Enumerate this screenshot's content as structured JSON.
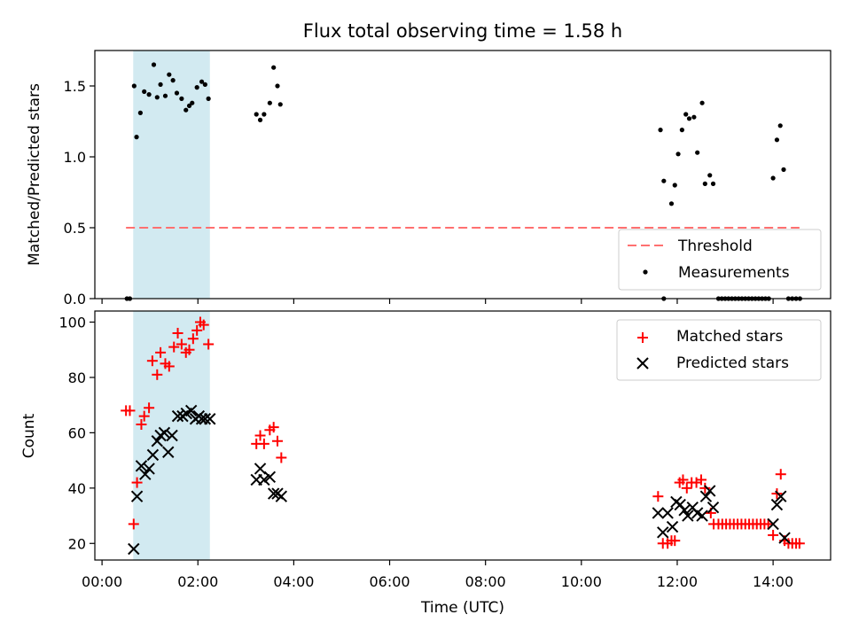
{
  "figure": {
    "title": "Flux total observing time = 1.58 h",
    "xlabel": "Time (UTC)"
  },
  "chart_data": [
    {
      "type": "scatter",
      "panel": "top",
      "ylabel": "Matched/Predicted stars",
      "xlim": [
        -0.15,
        15.2
      ],
      "ylim": [
        0,
        1.75
      ],
      "yticks": [
        0,
        0.5,
        1.0,
        1.5
      ],
      "ytick_labels": [
        "0.0",
        "0.5",
        "1.0",
        "1.5"
      ],
      "x_units": "hours UTC",
      "shaded_span": {
        "x": [
          0.65,
          2.25
        ],
        "color": "#add8e6"
      },
      "legend": {
        "position": "lower-right",
        "entries": [
          "Threshold",
          "Measurements"
        ]
      },
      "series": [
        {
          "name": "Threshold",
          "kind": "dashed-line",
          "color": "#ff7070",
          "x": [
            0.5,
            14.55
          ],
          "y": [
            0.5,
            0.5
          ]
        },
        {
          "name": "Measurements",
          "kind": "points",
          "color": "#000000",
          "points": [
            [
              0.52,
              0.0
            ],
            [
              0.58,
              0.0
            ],
            [
              0.67,
              1.5
            ],
            [
              0.72,
              1.14
            ],
            [
              0.8,
              1.31
            ],
            [
              0.88,
              1.46
            ],
            [
              0.98,
              1.44
            ],
            [
              1.08,
              1.65
            ],
            [
              1.15,
              1.42
            ],
            [
              1.22,
              1.51
            ],
            [
              1.32,
              1.43
            ],
            [
              1.4,
              1.58
            ],
            [
              1.48,
              1.54
            ],
            [
              1.56,
              1.45
            ],
            [
              1.66,
              1.41
            ],
            [
              1.75,
              1.33
            ],
            [
              1.82,
              1.36
            ],
            [
              1.88,
              1.38
            ],
            [
              1.98,
              1.49
            ],
            [
              2.08,
              1.53
            ],
            [
              2.15,
              1.51
            ],
            [
              2.22,
              1.41
            ],
            [
              3.22,
              1.3
            ],
            [
              3.3,
              1.26
            ],
            [
              3.38,
              1.3
            ],
            [
              3.5,
              1.38
            ],
            [
              3.58,
              1.63
            ],
            [
              3.66,
              1.5
            ],
            [
              3.72,
              1.37
            ],
            [
              11.65,
              1.19
            ],
            [
              11.72,
              0.83
            ],
            [
              11.88,
              0.67
            ],
            [
              11.95,
              0.8
            ],
            [
              12.02,
              1.02
            ],
            [
              12.1,
              1.19
            ],
            [
              12.18,
              1.3
            ],
            [
              12.25,
              1.27
            ],
            [
              12.35,
              1.28
            ],
            [
              12.42,
              1.03
            ],
            [
              12.52,
              1.38
            ],
            [
              12.58,
              0.81
            ],
            [
              12.68,
              0.87
            ],
            [
              12.75,
              0.81
            ],
            [
              14.0,
              0.85
            ],
            [
              14.08,
              1.12
            ],
            [
              14.15,
              1.22
            ],
            [
              14.22,
              0.91
            ],
            [
              11.72,
              0.0
            ],
            [
              12.86,
              0.0
            ],
            [
              12.93,
              0.0
            ],
            [
              13.0,
              0.0
            ],
            [
              13.07,
              0.0
            ],
            [
              13.14,
              0.0
            ],
            [
              13.21,
              0.0
            ],
            [
              13.28,
              0.0
            ],
            [
              13.35,
              0.0
            ],
            [
              13.42,
              0.0
            ],
            [
              13.49,
              0.0
            ],
            [
              13.56,
              0.0
            ],
            [
              13.63,
              0.0
            ],
            [
              13.7,
              0.0
            ],
            [
              13.77,
              0.0
            ],
            [
              13.84,
              0.0
            ],
            [
              13.91,
              0.0
            ],
            [
              14.32,
              0.0
            ],
            [
              14.4,
              0.0
            ],
            [
              14.48,
              0.0
            ],
            [
              14.56,
              0.0
            ]
          ]
        }
      ]
    },
    {
      "type": "scatter",
      "panel": "bottom",
      "ylabel": "Count",
      "xlim": [
        -0.15,
        15.2
      ],
      "ylim": [
        14,
        104
      ],
      "yticks": [
        20,
        40,
        60,
        80,
        100
      ],
      "ytick_labels": [
        "20",
        "40",
        "60",
        "80",
        "100"
      ],
      "xticks": [
        0,
        2,
        4,
        6,
        8,
        10,
        12,
        14
      ],
      "xtick_labels": [
        "00:00",
        "02:00",
        "04:00",
        "06:00",
        "08:00",
        "10:00",
        "12:00",
        "14:00"
      ],
      "shaded_span": {
        "x": [
          0.65,
          2.25
        ],
        "color": "#add8e6"
      },
      "legend": {
        "position": "top-right",
        "entries": [
          "Matched stars",
          "Predicted stars"
        ]
      },
      "series": [
        {
          "name": "Matched stars",
          "marker": "+",
          "color": "#ff0000",
          "points": [
            [
              0.5,
              68
            ],
            [
              0.58,
              68
            ],
            [
              0.66,
              27
            ],
            [
              0.73,
              42
            ],
            [
              0.82,
              63
            ],
            [
              0.88,
              66
            ],
            [
              0.98,
              69
            ],
            [
              1.05,
              86
            ],
            [
              1.15,
              81
            ],
            [
              1.22,
              89
            ],
            [
              1.32,
              85
            ],
            [
              1.4,
              84
            ],
            [
              1.5,
              91
            ],
            [
              1.58,
              96
            ],
            [
              1.66,
              92
            ],
            [
              1.75,
              89
            ],
            [
              1.82,
              90
            ],
            [
              1.9,
              94
            ],
            [
              1.98,
              97
            ],
            [
              2.05,
              100
            ],
            [
              2.12,
              99
            ],
            [
              2.22,
              92
            ],
            [
              3.22,
              56
            ],
            [
              3.3,
              59
            ],
            [
              3.38,
              56
            ],
            [
              3.5,
              61
            ],
            [
              3.58,
              62
            ],
            [
              3.66,
              57
            ],
            [
              3.74,
              51
            ],
            [
              11.6,
              37
            ],
            [
              11.7,
              20
            ],
            [
              11.8,
              20
            ],
            [
              11.88,
              21
            ],
            [
              11.95,
              21
            ],
            [
              12.05,
              42
            ],
            [
              12.12,
              43
            ],
            [
              12.2,
              40
            ],
            [
              12.3,
              42
            ],
            [
              12.4,
              42
            ],
            [
              12.5,
              43
            ],
            [
              12.58,
              40
            ],
            [
              12.7,
              31
            ],
            [
              12.76,
              27
            ],
            [
              12.86,
              27
            ],
            [
              12.94,
              27
            ],
            [
              13.02,
              27
            ],
            [
              13.1,
              27
            ],
            [
              13.18,
              27
            ],
            [
              13.26,
              27
            ],
            [
              13.34,
              27
            ],
            [
              13.42,
              27
            ],
            [
              13.5,
              27
            ],
            [
              13.58,
              27
            ],
            [
              13.66,
              27
            ],
            [
              13.74,
              27
            ],
            [
              13.82,
              27
            ],
            [
              13.9,
              27
            ],
            [
              14.0,
              23
            ],
            [
              14.08,
              38
            ],
            [
              14.16,
              45
            ],
            [
              14.24,
              21
            ],
            [
              14.32,
              20
            ],
            [
              14.4,
              20
            ],
            [
              14.48,
              20
            ],
            [
              14.55,
              20
            ]
          ]
        },
        {
          "name": "Predicted stars",
          "marker": "x",
          "color": "#000000",
          "points": [
            [
              0.66,
              18
            ],
            [
              0.73,
              37
            ],
            [
              0.82,
              48
            ],
            [
              0.9,
              45
            ],
            [
              0.98,
              47
            ],
            [
              1.06,
              52
            ],
            [
              1.15,
              57
            ],
            [
              1.22,
              59
            ],
            [
              1.3,
              60
            ],
            [
              1.38,
              53
            ],
            [
              1.46,
              59
            ],
            [
              1.58,
              66
            ],
            [
              1.68,
              66
            ],
            [
              1.76,
              67
            ],
            [
              1.86,
              68
            ],
            [
              1.95,
              65
            ],
            [
              2.02,
              66
            ],
            [
              2.08,
              65
            ],
            [
              2.15,
              65
            ],
            [
              2.25,
              65
            ],
            [
              3.22,
              43
            ],
            [
              3.3,
              47
            ],
            [
              3.38,
              43
            ],
            [
              3.5,
              44
            ],
            [
              3.58,
              38
            ],
            [
              3.66,
              38
            ],
            [
              3.74,
              37
            ],
            [
              11.6,
              31
            ],
            [
              11.7,
              24
            ],
            [
              11.8,
              31
            ],
            [
              11.9,
              26
            ],
            [
              11.98,
              35
            ],
            [
              12.06,
              34
            ],
            [
              12.15,
              32
            ],
            [
              12.22,
              30
            ],
            [
              12.32,
              33
            ],
            [
              12.42,
              31
            ],
            [
              12.52,
              30
            ],
            [
              12.6,
              37
            ],
            [
              12.68,
              39
            ],
            [
              12.75,
              33
            ],
            [
              14.0,
              27
            ],
            [
              14.08,
              34
            ],
            [
              14.16,
              37
            ],
            [
              14.24,
              22
            ]
          ]
        }
      ]
    }
  ]
}
